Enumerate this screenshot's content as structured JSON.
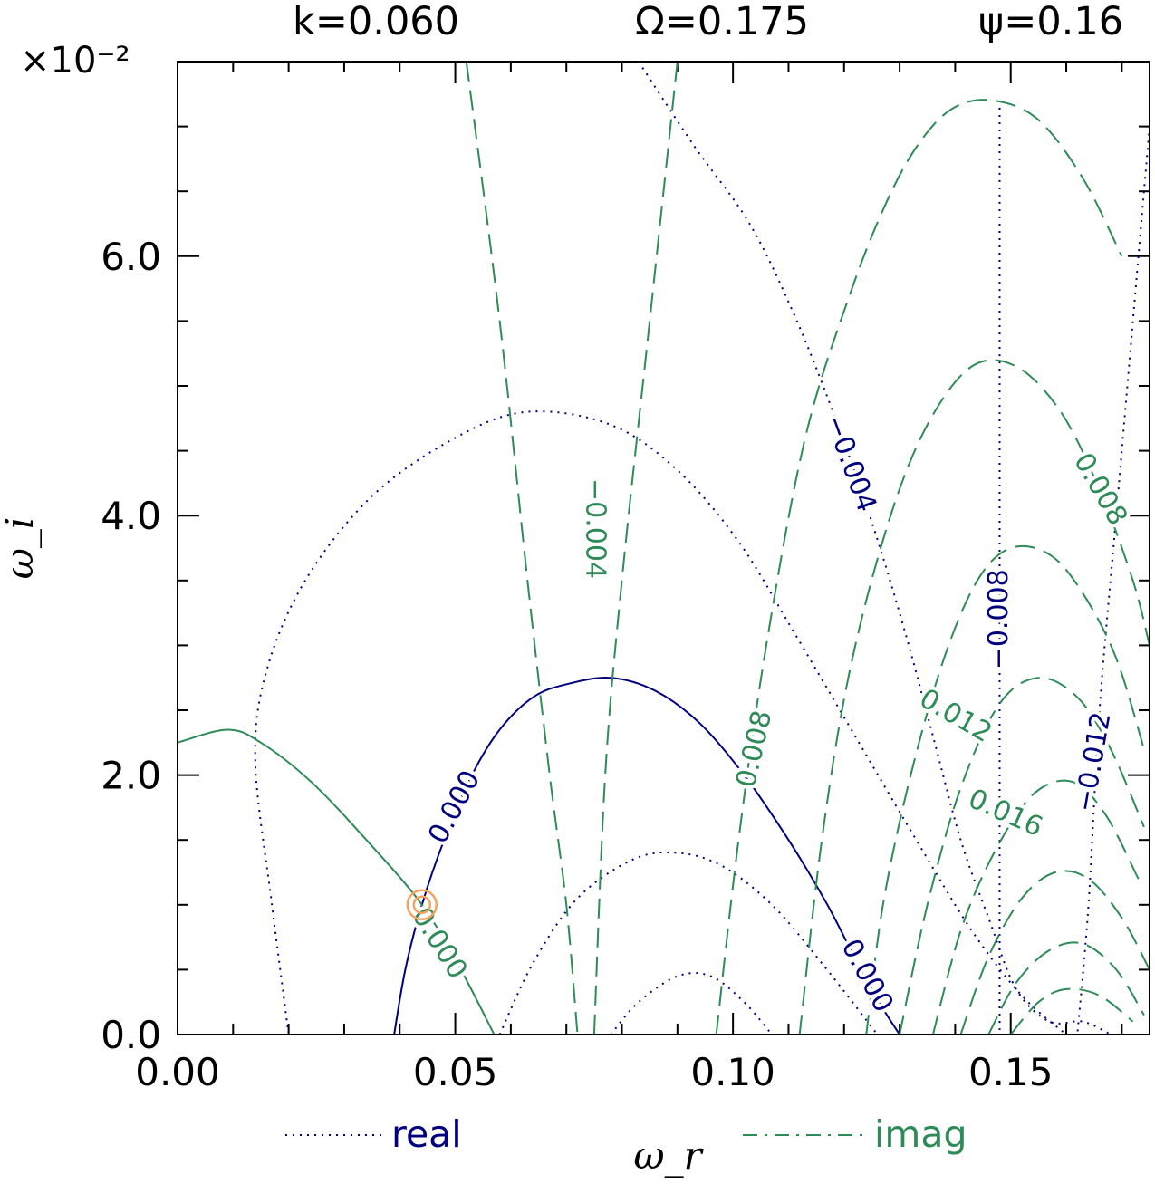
{
  "header": {
    "k_label": "k=0.060",
    "omega_label": "Ω=0.175",
    "psi_label": "ψ=0.16"
  },
  "colors": {
    "real": "#00007f",
    "imag": "#2e8b57",
    "marker": "#f4a460",
    "axis": "#000000"
  },
  "chart_data": {
    "type": "line",
    "subtype": "contour",
    "title": "",
    "xlabel": "ω_r",
    "ylabel": "ω_i",
    "y_multiplier": "×10⁻²",
    "xlim": [
      0,
      0.175
    ],
    "ylim": [
      0,
      7.5
    ],
    "x_ticks": [
      "0.00",
      "0.05",
      "0.10",
      "0.15"
    ],
    "y_ticks": [
      "0.0",
      "2.0",
      "4.0",
      "6.0"
    ],
    "legend": [
      {
        "name": "real",
        "style": "dotted"
      },
      {
        "name": "imag",
        "style": "dashed"
      }
    ],
    "legend_position": "bottom",
    "root_marker": {
      "x": 0.044,
      "y": 1.0
    },
    "series": [
      {
        "name": "real",
        "level": "0.000",
        "style": "solid",
        "x": [
          0.039,
          0.041,
          0.044,
          0.048,
          0.053,
          0.058,
          0.064,
          0.07,
          0.078,
          0.086,
          0.094,
          0.102,
          0.11,
          0.117,
          0.123,
          0.127,
          0.13
        ],
        "y": [
          0,
          0.5,
          1.0,
          1.5,
          2.0,
          2.35,
          2.6,
          2.7,
          2.75,
          2.65,
          2.4,
          2.0,
          1.5,
          1.0,
          0.5,
          0.2,
          0
        ]
      },
      {
        "name": "real",
        "level": "contour",
        "style": "dotted",
        "x": [
          0.02,
          0.017,
          0.014,
          0.016,
          0.023,
          0.035,
          0.05,
          0.063,
          0.078,
          0.09,
          0.101,
          0.111,
          0.122,
          0.133,
          0.143,
          0.152,
          0.16
        ],
        "y": [
          0,
          1.0,
          2.1,
          2.8,
          3.5,
          4.15,
          4.6,
          4.8,
          4.7,
          4.35,
          3.8,
          3.1,
          2.3,
          1.5,
          0.8,
          0.3,
          0
        ]
      },
      {
        "name": "real",
        "level": "contour",
        "style": "dotted",
        "x": [
          0.058,
          0.064,
          0.072,
          0.082,
          0.09,
          0.098,
          0.107,
          0.116,
          0.126
        ],
        "y": [
          0,
          0.55,
          1.05,
          1.35,
          1.4,
          1.3,
          1.0,
          0.55,
          0
        ]
      },
      {
        "name": "real",
        "level": "contour",
        "style": "dotted",
        "x": [
          0.078,
          0.083,
          0.09,
          0.096,
          0.102,
          0.107
        ],
        "y": [
          0,
          0.25,
          0.45,
          0.45,
          0.25,
          0
        ]
      },
      {
        "name": "real",
        "level": "-0.004",
        "style": "dotted",
        "x": [
          0.083,
          0.093,
          0.103,
          0.111,
          0.118,
          0.125,
          0.131,
          0.136,
          0.141,
          0.146,
          0.151,
          0.157,
          0.163,
          0.168
        ],
        "y": [
          7.5,
          6.85,
          6.25,
          5.55,
          4.8,
          3.95,
          3.1,
          2.3,
          1.5,
          0.9,
          0.35,
          0.1,
          0.1,
          0
        ]
      },
      {
        "name": "real",
        "level": "-0.008",
        "style": "dotted",
        "x": [
          0.148,
          0.148,
          0.148,
          0.148,
          0.148
        ],
        "y": [
          7.2,
          5.0,
          3.0,
          1.0,
          0
        ]
      },
      {
        "name": "real",
        "level": "-0.012",
        "style": "dotted",
        "x": [
          0.175,
          0.172,
          0.169,
          0.166,
          0.164,
          0.162
        ],
        "y": [
          7.0,
          5.5,
          4.0,
          2.5,
          1.0,
          0
        ]
      },
      {
        "name": "imag",
        "level": "0.000",
        "style": "solid",
        "x": [
          0.0,
          0.009,
          0.015,
          0.024,
          0.034,
          0.044,
          0.051,
          0.057
        ],
        "y": [
          2.25,
          2.35,
          2.25,
          1.95,
          1.5,
          1.0,
          0.5,
          0
        ]
      },
      {
        "name": "imag",
        "level": "-0.004",
        "style": "dashed",
        "x": [
          0.052,
          0.058,
          0.063,
          0.067,
          0.07,
          0.072
        ],
        "y": [
          7.5,
          5.5,
          3.5,
          2.0,
          1.0,
          0
        ]
      },
      {
        "name": "imag",
        "level": "0.000",
        "style": "dashed",
        "x": [
          0.09,
          0.085,
          0.08,
          0.077,
          0.075
        ],
        "y": [
          7.5,
          5.5,
          3.5,
          2.0,
          0
        ]
      },
      {
        "name": "imag",
        "level": "0.008",
        "style": "dashed",
        "x": [
          0.097,
          0.101,
          0.106,
          0.113,
          0.121,
          0.128,
          0.134,
          0.14,
          0.147,
          0.155,
          0.163,
          0.17
        ],
        "y": [
          0,
          1.5,
          3.0,
          4.6,
          5.7,
          6.45,
          6.9,
          7.15,
          7.2,
          7.05,
          6.6,
          6.0
        ]
      },
      {
        "name": "imag",
        "level": "0.008",
        "style": "dashed",
        "x": [
          0.112,
          0.116,
          0.121,
          0.128,
          0.135,
          0.143,
          0.151,
          0.159,
          0.166,
          0.172,
          0.175
        ],
        "y": [
          0,
          1.5,
          2.8,
          3.95,
          4.7,
          5.15,
          5.15,
          4.8,
          4.2,
          3.5,
          3.0
        ]
      },
      {
        "name": "imag",
        "level": "0.012",
        "style": "dashed",
        "x": [
          0.124,
          0.127,
          0.132,
          0.138,
          0.144,
          0.15,
          0.157,
          0.163,
          0.169,
          0.174
        ],
        "y": [
          0,
          1.0,
          2.0,
          2.9,
          3.5,
          3.75,
          3.7,
          3.4,
          2.9,
          2.2
        ]
      },
      {
        "name": "imag",
        "level": "0.012",
        "style": "dashed",
        "x": [
          0.13,
          0.135,
          0.141,
          0.148,
          0.155,
          0.162,
          0.168,
          0.174
        ],
        "y": [
          0,
          1.0,
          1.9,
          2.55,
          2.75,
          2.6,
          2.2,
          1.6
        ]
      },
      {
        "name": "imag",
        "level": "0.016",
        "style": "dashed",
        "x": [
          0.136,
          0.141,
          0.147,
          0.154,
          0.161,
          0.167,
          0.173
        ],
        "y": [
          0,
          0.8,
          1.4,
          1.85,
          1.95,
          1.7,
          1.2
        ]
      },
      {
        "name": "imag",
        "level": "0.016",
        "style": "dashed",
        "x": [
          0.141,
          0.146,
          0.152,
          0.158,
          0.164,
          0.17,
          0.175
        ],
        "y": [
          0,
          0.6,
          1.05,
          1.25,
          1.2,
          0.9,
          0.5
        ]
      },
      {
        "name": "imag",
        "level": "contour",
        "style": "dashed",
        "x": [
          0.146,
          0.151,
          0.157,
          0.163,
          0.169,
          0.174
        ],
        "y": [
          0,
          0.4,
          0.65,
          0.7,
          0.5,
          0.15
        ]
      },
      {
        "name": "imag",
        "level": "contour",
        "style": "dashed",
        "x": [
          0.15,
          0.155,
          0.16,
          0.166,
          0.172
        ],
        "y": [
          0,
          0.25,
          0.35,
          0.3,
          0.1
        ]
      }
    ],
    "contour_labels": [
      {
        "series": "real",
        "text": "0.000",
        "x": 0.05,
        "y": 1.75,
        "rotate": -62
      },
      {
        "series": "real",
        "text": "0.000",
        "x": 0.124,
        "y": 0.45,
        "rotate": 62
      },
      {
        "series": "real",
        "text": "-0.004",
        "x": 0.121,
        "y": 4.4,
        "rotate": 70
      },
      {
        "series": "real",
        "text": "-0.008",
        "x": 0.148,
        "y": 3.2,
        "rotate": -90
      },
      {
        "series": "real",
        "text": "-0.012",
        "x": 0.165,
        "y": 2.1,
        "rotate": -80
      },
      {
        "series": "imag",
        "text": "0.000",
        "x": 0.047,
        "y": 0.7,
        "rotate": 58
      },
      {
        "series": "imag",
        "text": "-0.004",
        "x": 0.075,
        "y": 3.9,
        "rotate": 90
      },
      {
        "series": "imag",
        "text": "0.008",
        "x": 0.104,
        "y": 2.2,
        "rotate": -77
      },
      {
        "series": "imag",
        "text": "0.008",
        "x": 0.166,
        "y": 4.2,
        "rotate": 60
      },
      {
        "series": "imag",
        "text": "0.012",
        "x": 0.14,
        "y": 2.45,
        "rotate": 30
      },
      {
        "series": "imag",
        "text": "0.016",
        "x": 0.149,
        "y": 1.7,
        "rotate": 24
      }
    ]
  }
}
